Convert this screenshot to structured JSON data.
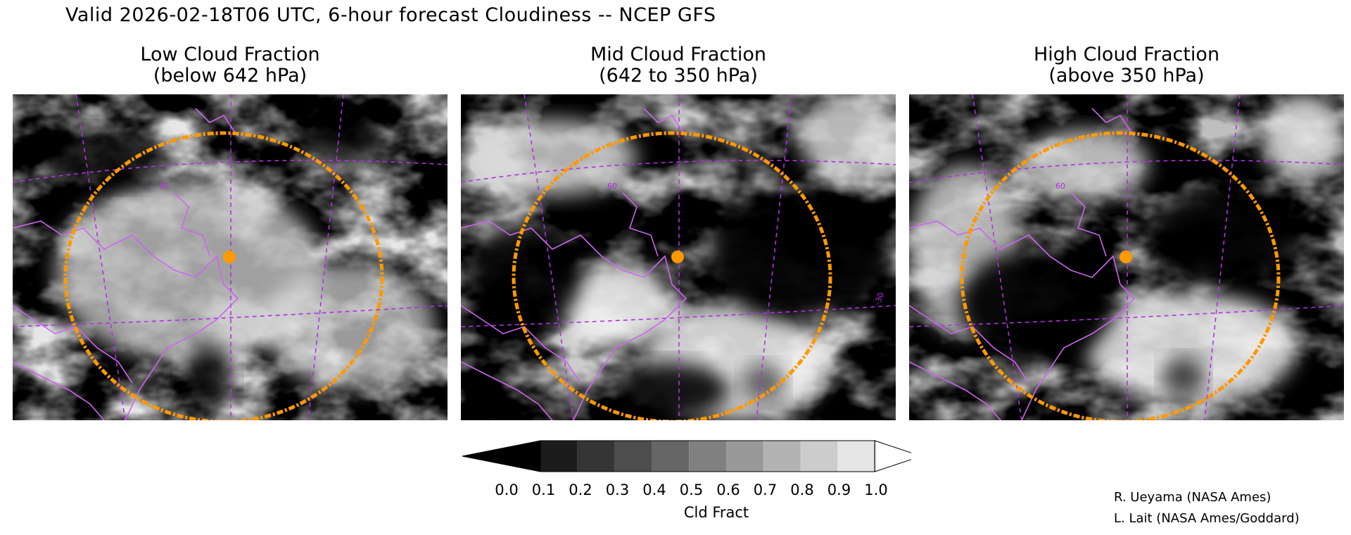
{
  "title": "Valid 2026-02-18T06 UTC, 6-hour forecast Cloudiness -- NCEP GFS",
  "panels": [
    {
      "title_line1": "Low Cloud Fraction",
      "title_line2": "(below 642 hPa)"
    },
    {
      "title_line1": "Mid Cloud Fraction",
      "title_line2": "(642 to 350 hPa)"
    },
    {
      "title_line1": "High Cloud Fraction",
      "title_line2": "(above 350 hPa)"
    }
  ],
  "map_labels": {
    "lat60": "60",
    "lon30": "-30"
  },
  "colorbar": {
    "units": "Cld Fract",
    "ticks": [
      "0.0",
      "0.1",
      "0.2",
      "0.3",
      "0.4",
      "0.5",
      "0.6",
      "0.7",
      "0.8",
      "0.9",
      "1.0"
    ],
    "colors": [
      "#000000",
      "#1c1c1c",
      "#353535",
      "#4d4d4d",
      "#666666",
      "#808080",
      "#999999",
      "#b3b3b3",
      "#cccccc",
      "#e6e6e6",
      "#ffffff"
    ]
  },
  "colors": {
    "coastline": "#cc66ee",
    "range_ring": "#ff9900",
    "marker": "#ff9900"
  },
  "credits": [
    "R. Ueyama (NASA Ames)",
    "L. Lait (NASA Ames/Goddard)"
  ]
}
